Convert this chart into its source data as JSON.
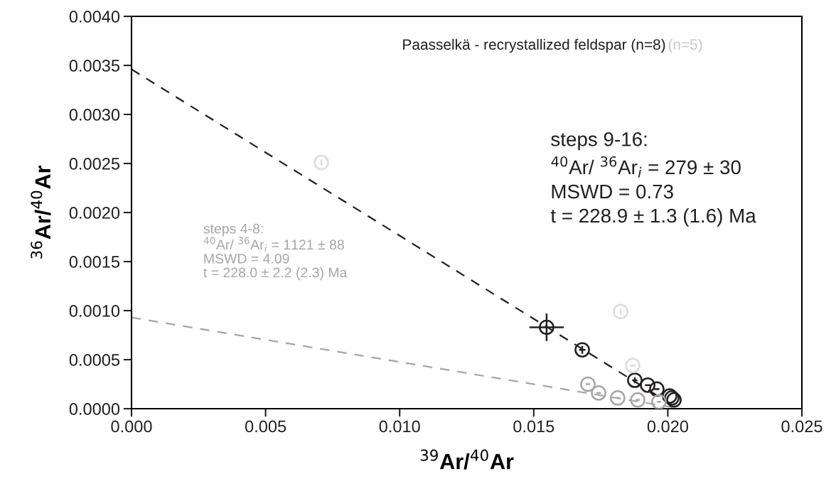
{
  "chart_data": {
    "type": "scatter",
    "title": "Paasselkä - recrystallized feldspar (n=8)",
    "xlabel": "$^{39}$Ar/$^{40}$Ar",
    "ylabel": "$^{36}$Ar/$^{40}$Ar",
    "series": [
      {
        "type": "line",
        "color": "#231f20",
        "line_style": "dashed",
        "marker": "none",
        "x": [
          0,
          0.0204
        ],
        "values": [
          0.00346,
          0
        ]
      },
      {
        "type": "line",
        "color": "#a6a6a6",
        "line_style": "dashed",
        "marker": "none",
        "x": [
          0,
          0.0205
        ],
        "values": [
          0.00093,
          0
        ]
      },
      {
        "color": "#231f20",
        "marker": "circle",
        "x": [
          0.01548,
          0.01681,
          0.01877,
          0.01925,
          0.01959,
          0.02007,
          0.02015,
          0.02023
        ],
        "values": [
          0.00083,
          0.0006,
          0.00029,
          0.00024,
          0.0002,
          0.00013,
          0.00011,
          9e-05
        ],
        "errors": [
          0.00014,
          4e-05,
          3e-05,
          null,
          null,
          null,
          null,
          null
        ],
        "xerrors": [
          0.00064,
          0.00012,
          0.0001,
          0.0001,
          0.0001,
          null,
          null,
          null
        ]
      },
      {
        "color": "#a6a6a6",
        "marker": "circle",
        "x": [
          0.01702,
          0.01742,
          0.01813,
          0.01888,
          0.01967
        ],
        "values": [
          0.00025,
          0.00016,
          0.00011,
          9e-05,
          7e-05
        ],
        "xerrors": [
          8e-05,
          8e-05,
          8e-05,
          8e-05,
          8e-05
        ]
      },
      {
        "color": "#dcdcdc",
        "marker": "circle",
        "x": [
          0.00708,
          0.01824,
          0.01869
        ],
        "values": [
          0.00251,
          0.00099,
          0.00044
        ],
        "errors": [
          3e-05,
          3e-05,
          null
        ],
        "xerrors": [
          null,
          null,
          0.0001
        ]
      }
    ],
    "annotations": [
      "(n=5)",
      "steps 9-16:\n$^{40}$Ar/ $^{36}$Ar$_{i}$ = 279 ± 30\nMSWD = 0.73\nt = 228.9 ± 1.3 (1.6) Ma",
      "steps 4-8:\n$^{40}$Ar/ $^{36}$Ar$_{i}$ = 1121 ± 88\nMSWD = 4.09\nt = 228.0 ± 2.2 (2.3) Ma"
    ],
    "xlim": [
      0,
      0.025
    ],
    "ylim": [
      0,
      0.004
    ],
    "xticks": [
      {
        "value": 0,
        "label": "0.000"
      },
      {
        "value": 0.005,
        "label": "0.005"
      },
      {
        "value": 0.01,
        "label": "0.010"
      },
      {
        "value": 0.015,
        "label": "0.015"
      },
      {
        "value": 0.02,
        "label": "0.020"
      },
      {
        "value": 0.025,
        "label": "0.025"
      }
    ],
    "yticks": [
      {
        "value": 0,
        "label": "0.0000"
      },
      {
        "value": 0.0005,
        "label": "0.0005"
      },
      {
        "value": 0.001,
        "label": "0.0010"
      },
      {
        "value": 0.0015,
        "label": "0.0015"
      },
      {
        "value": 0.002,
        "label": "0.0020"
      },
      {
        "value": 0.0025,
        "label": "0.0025"
      },
      {
        "value": 0.003,
        "label": "0.0030"
      },
      {
        "value": 0.0035,
        "label": "0.0035"
      },
      {
        "value": 0.004,
        "label": "0.0040"
      }
    ],
    "grid": false,
    "legend": false
  }
}
